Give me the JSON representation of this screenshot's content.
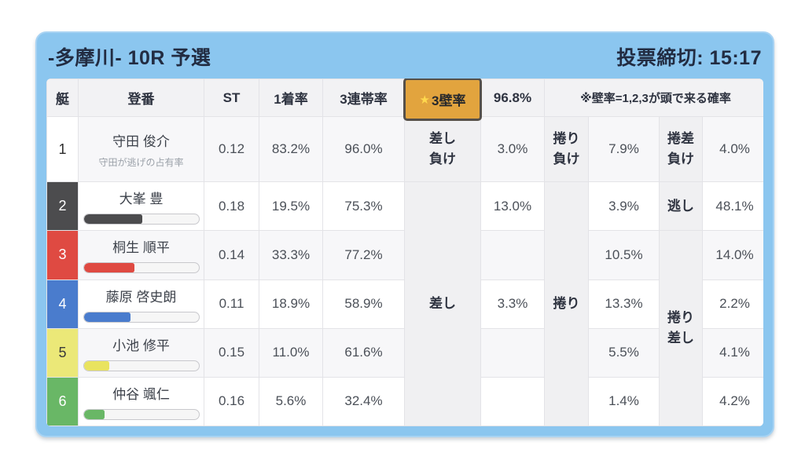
{
  "header": {
    "title": "-多摩川- 10R 予選",
    "deadline": "投票締切: 15:17"
  },
  "table": {
    "columns": {
      "boat": "艇",
      "racer": "登番",
      "st": "ST",
      "win1": "1着率",
      "top3": "3連帯率",
      "wall_star": "★",
      "wall": "3壁率",
      "wall_value": "96.8%",
      "note": "※壁率=1,2,3が頭で来る確率"
    },
    "merged_labels": {
      "sashi": "差し",
      "makuri": "捲り",
      "nigashi": "逃し",
      "makurizashi": "捲り\n差し"
    },
    "rows": [
      {
        "boat": "1",
        "name": "守田 俊介",
        "subtext": "守田が逃げの占有率",
        "st": "0.12",
        "win1": "83.2%",
        "top3": "96.0%",
        "c1_label": "差し\n負け",
        "c1": "3.0%",
        "c2_label": "捲り\n負け",
        "c2": "7.9%",
        "c3_label": "捲差\n負け",
        "c3": "4.0%"
      },
      {
        "boat": "2",
        "name": "大峯 豊",
        "bar_pct": 51,
        "st": "0.18",
        "win1": "19.5%",
        "top3": "75.3%",
        "c1": "13.0%",
        "c2": "3.9%",
        "c3_label": "逃し",
        "c3": "48.1%"
      },
      {
        "boat": "3",
        "name": "桐生 順平",
        "bar_pct": 44,
        "st": "0.14",
        "win1": "33.3%",
        "top3": "77.2%",
        "c1": "",
        "c2": "10.5%",
        "c3": "14.0%"
      },
      {
        "boat": "4",
        "name": "藤原 啓史朗",
        "bar_pct": 41,
        "st": "0.11",
        "win1": "18.9%",
        "top3": "58.9%",
        "c1": "3.3%",
        "c2": "13.3%",
        "c3": "2.2%"
      },
      {
        "boat": "5",
        "name": "小池 修平",
        "bar_pct": 22,
        "st": "0.15",
        "win1": "11.0%",
        "top3": "61.6%",
        "c1": "",
        "c2": "5.5%",
        "c3": "4.1%"
      },
      {
        "boat": "6",
        "name": "仲谷 颯仁",
        "bar_pct": 18,
        "st": "0.16",
        "win1": "5.6%",
        "top3": "32.4%",
        "c1": "",
        "c2": "1.4%",
        "c3": "4.2%"
      }
    ]
  },
  "colors": {
    "card_blue": "#8bc6ef",
    "wall_gold": "#e2a43e",
    "wall_border": "#55504a",
    "wall_value_red": "#e0352b",
    "boat_1": "#ffffff",
    "boat_2": "#4c4c4e",
    "boat_3": "#df4a42",
    "boat_4": "#4a7ccd",
    "boat_5": "#ebe878",
    "boat_6": "#69b766"
  }
}
